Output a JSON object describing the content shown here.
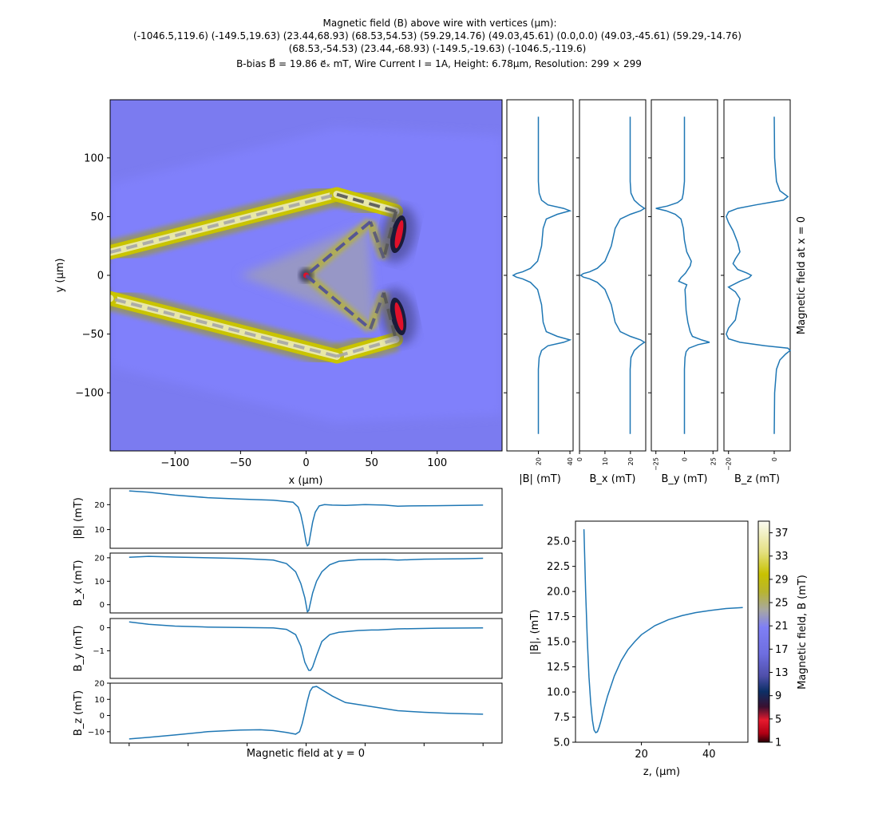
{
  "title": {
    "line1": "Magnetic field (B) above wire with vertices (μm):",
    "line2": "(-1046.5,119.6) (-149.5,19.63) (23.44,68.93) (68.53,54.53) (59.29,14.76) (49.03,45.61) (0.0,0.0) (49.03,-45.61) (59.29,-14.76)",
    "line3": "(68.53,-54.53) (23.44,-68.93) (-149.5,-19.63) (-1046.5,-119.6)",
    "line4": "B-bias B⃗ = 19.86 e⃗ₓ mT, Wire Current I = 1A, Height: 6.78μm, Resolution: 299 × 299"
  },
  "chart_data": [
    {
      "type": "heatmap",
      "name": "map",
      "xlabel": "x (μm)",
      "ylabel": "y (μm)",
      "xlim": [
        -149.5,
        149.5
      ],
      "ylim": [
        -149.5,
        149.5
      ],
      "xticks": [
        -100,
        -50,
        0,
        50,
        100
      ],
      "yticks": [
        -100,
        -50,
        0,
        50,
        100
      ],
      "xticklabels": [
        "−100",
        "−50",
        "0",
        "50",
        "100"
      ],
      "yticklabels": [
        "−100",
        "−50",
        "0",
        "50",
        "100"
      ],
      "wire_vertices": [
        [
          -1046.5,
          119.6
        ],
        [
          -149.5,
          19.63
        ],
        [
          23.44,
          68.93
        ],
        [
          68.53,
          54.53
        ],
        [
          59.29,
          14.76
        ],
        [
          49.03,
          45.61
        ],
        [
          0.0,
          0.0
        ],
        [
          49.03,
          -45.61
        ],
        [
          59.29,
          -14.76
        ],
        [
          68.53,
          -54.53
        ],
        [
          23.44,
          -68.93
        ],
        [
          -149.5,
          -19.63
        ],
        [
          -1046.5,
          -119.6
        ]
      ]
    },
    {
      "type": "line",
      "name": "right-profiles",
      "ylabel": "Magnetic field at x = 0",
      "y_range": [
        -149.5,
        149.5
      ],
      "panels": [
        {
          "key": "absB",
          "xlabel": "|B| (mT)",
          "xlim": [
            0,
            42
          ],
          "xticks": [
            20,
            40
          ],
          "xticklabels": [
            "20",
            "40"
          ],
          "y": [
            -135,
            -100,
            -80,
            -70,
            -64,
            -60,
            -57,
            -55,
            -52,
            -48,
            -40,
            -25,
            -12,
            -6,
            -3,
            -1.5,
            0,
            1.5,
            3,
            6,
            12,
            25,
            40,
            48,
            52,
            55,
            57,
            60,
            64,
            70,
            80,
            100,
            135
          ],
          "values": [
            20,
            20,
            20,
            20.5,
            22,
            26,
            36,
            40,
            32,
            25,
            23,
            22,
            19.5,
            15,
            10,
            6,
            4,
            6,
            10,
            15,
            19.5,
            22,
            23,
            25,
            32,
            40,
            36,
            26,
            22,
            20.5,
            20,
            20,
            20
          ]
        },
        {
          "key": "Bx",
          "xlabel": "B_x (mT)",
          "xlim": [
            0,
            26
          ],
          "xticks": [
            0,
            10,
            20
          ],
          "xticklabels": [
            "0",
            "10",
            "20"
          ],
          "y": [
            -135,
            -100,
            -80,
            -70,
            -64,
            -60,
            -57,
            -55,
            -52,
            -48,
            -40,
            -25,
            -12,
            -6,
            -3,
            -1.5,
            0,
            1.5,
            3,
            6,
            12,
            25,
            40,
            48,
            52,
            55,
            57,
            60,
            64,
            70,
            80,
            100,
            135
          ],
          "values": [
            19.9,
            19.9,
            19.9,
            20.2,
            21.5,
            23.5,
            25.5,
            24,
            20,
            16,
            14,
            12.5,
            10,
            7,
            4,
            1.5,
            0.5,
            1.5,
            4,
            7,
            10,
            12.5,
            14,
            16,
            20,
            24,
            25.5,
            23.5,
            21.5,
            20.2,
            19.9,
            19.9,
            19.9
          ]
        },
        {
          "key": "By",
          "xlabel": "B_y (mT)",
          "xlim": [
            -29,
            29
          ],
          "xticks": [
            -25,
            0,
            25
          ],
          "xticklabels": [
            "−25",
            "0",
            "25"
          ],
          "y": [
            -135,
            -100,
            -80,
            -70,
            -65,
            -62,
            -59,
            -57,
            -55,
            -52,
            -48,
            -40,
            -30,
            -20,
            -12,
            -8,
            -5,
            -2,
            0,
            2,
            5,
            8,
            12,
            20,
            30,
            40,
            48,
            52,
            55,
            57,
            59,
            62,
            65,
            70,
            80,
            100,
            135
          ],
          "values": [
            0,
            0,
            0,
            0.5,
            1.5,
            4,
            12,
            22,
            15,
            7,
            5,
            3,
            1.5,
            1,
            0.5,
            2,
            -5,
            -3,
            -1,
            1,
            3,
            5,
            6,
            2,
            0,
            -1,
            -3,
            -8,
            -16,
            -25,
            -15,
            -6,
            -2,
            -1,
            0,
            0,
            0
          ]
        },
        {
          "key": "Bz",
          "xlabel": "B_z (mT)",
          "xlim": [
            -22,
            7
          ],
          "xticks": [
            -20,
            0
          ],
          "xticklabels": [
            "−20",
            "0"
          ],
          "y": [
            -135,
            -100,
            -80,
            -72,
            -67,
            -64,
            -62,
            -60,
            -57,
            -54,
            -50,
            -45,
            -38,
            -28,
            -20,
            -14,
            -10,
            -5,
            -2,
            0,
            2,
            5,
            10,
            14,
            20,
            28,
            38,
            45,
            50,
            54,
            57,
            60,
            62,
            64,
            67,
            72,
            80,
            100,
            135
          ],
          "values": [
            0,
            0.2,
            1,
            2.5,
            5,
            7,
            6,
            -4,
            -15,
            -20,
            -21,
            -20,
            -17,
            -16,
            -15,
            -17,
            -20,
            -15,
            -11,
            -10,
            -12,
            -16,
            -18,
            -17,
            -15,
            -16,
            -18,
            -20,
            -21,
            -20,
            -16,
            -8,
            -2,
            4,
            6,
            2.5,
            1,
            0.2,
            0
          ]
        }
      ]
    },
    {
      "type": "line",
      "name": "bottom-profiles",
      "xlabel": "Magnetic field at y = 0",
      "x_range": [
        -149.5,
        149.5
      ],
      "panels": [
        {
          "key": "absB",
          "ylabel": "|B| (mT)",
          "ylim": [
            2.5,
            26.5
          ],
          "yticks": [
            10,
            20
          ],
          "yticklabels": [
            "10",
            "20"
          ],
          "x": [
            -135,
            -120,
            -100,
            -75,
            -50,
            -25,
            -10,
            -6,
            -4,
            -2,
            0,
            1,
            2,
            3,
            5,
            7,
            10,
            14,
            20,
            30,
            45,
            60,
            70,
            80,
            100,
            135
          ],
          "values": [
            25.5,
            25,
            23.8,
            22.8,
            22.2,
            21.8,
            21,
            19,
            16,
            11,
            5,
            3.5,
            4,
            7,
            13,
            17,
            19.5,
            20,
            19.8,
            19.7,
            20,
            19.8,
            19.4,
            19.5,
            19.6,
            19.8
          ]
        },
        {
          "key": "Bx",
          "ylabel": "B_x (mT)",
          "ylim": [
            -3.5,
            22
          ],
          "yticks": [
            0,
            10,
            20
          ],
          "yticklabels": [
            "0",
            "10",
            "20"
          ],
          "x": [
            -135,
            -120,
            -100,
            -75,
            -50,
            -25,
            -15,
            -8,
            -4,
            -1,
            1,
            2,
            3,
            5,
            8,
            12,
            18,
            25,
            40,
            60,
            70,
            90,
            120,
            135
          ],
          "values": [
            20.2,
            20.6,
            20.3,
            20,
            19.7,
            19,
            17.5,
            14,
            9,
            3,
            -3,
            -2.5,
            0,
            5,
            10,
            14,
            17,
            18.5,
            19.2,
            19.3,
            19,
            19.4,
            19.6,
            19.8
          ]
        },
        {
          "key": "By",
          "ylabel": "B_y (mT)",
          "ylim": [
            -2.2,
            0.4
          ],
          "yticks": [
            -1,
            0
          ],
          "yticklabels": [
            "−1",
            "0"
          ],
          "x": [
            -135,
            -120,
            -100,
            -75,
            -50,
            -25,
            -15,
            -8,
            -4,
            -1,
            2,
            3.5,
            5,
            8,
            12,
            18,
            25,
            40,
            50,
            55,
            70,
            100,
            135
          ],
          "values": [
            0.25,
            0.15,
            0.07,
            0.03,
            0.01,
            -0.01,
            -0.07,
            -0.3,
            -0.8,
            -1.5,
            -1.85,
            -1.85,
            -1.7,
            -1.2,
            -0.6,
            -0.3,
            -0.2,
            -0.12,
            -0.1,
            -0.1,
            -0.05,
            -0.02,
            -0.01
          ]
        },
        {
          "key": "Bz",
          "ylabel": "B_z (mT)",
          "ylim": [
            -17,
            20
          ],
          "yticks": [
            -10,
            0,
            10,
            20
          ],
          "yticklabels": [
            "−10",
            "0",
            "10",
            "20"
          ],
          "x": [
            -135,
            -120,
            -100,
            -75,
            -50,
            -35,
            -25,
            -15,
            -8,
            -5,
            -3,
            -1,
            1,
            3,
            5,
            8,
            12,
            20,
            30,
            50,
            70,
            90,
            110,
            135
          ],
          "values": [
            -14.5,
            -13.5,
            -12,
            -10,
            -9,
            -8.8,
            -9.3,
            -10.5,
            -11.5,
            -10,
            -5,
            2,
            9,
            15,
            17.5,
            18,
            16,
            12,
            8,
            5.5,
            3,
            2,
            1.3,
            0.8
          ]
        }
      ]
    },
    {
      "type": "line",
      "name": "height",
      "xlabel": "z, (μm)",
      "ylabel": "|B|, (mT)",
      "xlim": [
        0.5,
        51.5
      ],
      "ylim": [
        5.0,
        27.0
      ],
      "xticks": [
        20,
        40
      ],
      "xticklabels": [
        "20",
        "40"
      ],
      "yticks": [
        5.0,
        7.5,
        10.0,
        12.5,
        15.0,
        17.5,
        20.0,
        22.5,
        25.0
      ],
      "yticklabels": [
        "5.0",
        "7.5",
        "10.0",
        "12.5",
        "15.0",
        "17.5",
        "20.0",
        "22.5",
        "25.0"
      ],
      "x": [
        3,
        3.5,
        4,
        4.5,
        5,
        5.5,
        6,
        6.5,
        7,
        7.5,
        8,
        9,
        10,
        12,
        14,
        16,
        18,
        20,
        24,
        28,
        32,
        36,
        40,
        45,
        50
      ],
      "values": [
        26.2,
        20,
        15.2,
        11.5,
        8.9,
        7.2,
        6.2,
        5.95,
        6.05,
        6.5,
        7.1,
        8.4,
        9.6,
        11.6,
        13.1,
        14.2,
        15.0,
        15.7,
        16.6,
        17.2,
        17.6,
        17.9,
        18.1,
        18.3,
        18.4
      ]
    },
    {
      "type": "colorbar",
      "name": "colorbar",
      "label": "Magnetic field, B (mT)",
      "range": [
        1,
        39
      ],
      "ticks": [
        1,
        5,
        9,
        13,
        17,
        21,
        25,
        29,
        33,
        37
      ],
      "ticklabels": [
        "1",
        "5",
        "9",
        "13",
        "17",
        "21",
        "25",
        "29",
        "33",
        "37"
      ]
    }
  ],
  "colors": {
    "curve": "#1f77b4",
    "background_field": "#7c7cf1",
    "wire_dash": "#a6a6a6",
    "wire_dash_dark": "#555555",
    "hot_spot": "#e0102a"
  }
}
